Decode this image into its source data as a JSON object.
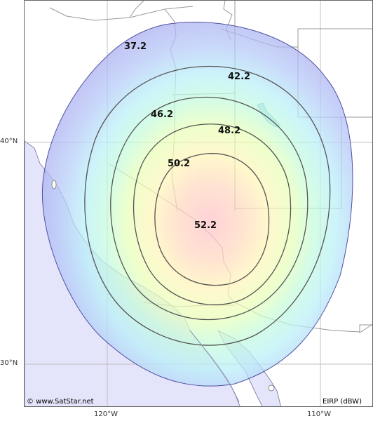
{
  "map": {
    "title": "",
    "copyright": "© www.SatStar.net",
    "units_label": "EIRP (dBW)",
    "lat_labels": [
      "40°N",
      "30°N"
    ],
    "lon_labels": [
      "120°W",
      "110°W"
    ],
    "contours": [
      {
        "value": "37.2",
        "color": "#4a4aa8"
      },
      {
        "value": "42.2",
        "color": "#444"
      },
      {
        "value": "46.2",
        "color": "#444"
      },
      {
        "value": "48.2",
        "color": "#444"
      },
      {
        "value": "50.2",
        "color": "#444"
      },
      {
        "value": "52.2",
        "color": "#444"
      }
    ],
    "colors": {
      "ocean": "#e4e4fb",
      "land": "#ffffff",
      "border": "#888888",
      "grid": "#bbbbbb",
      "contour": "#555555"
    }
  }
}
